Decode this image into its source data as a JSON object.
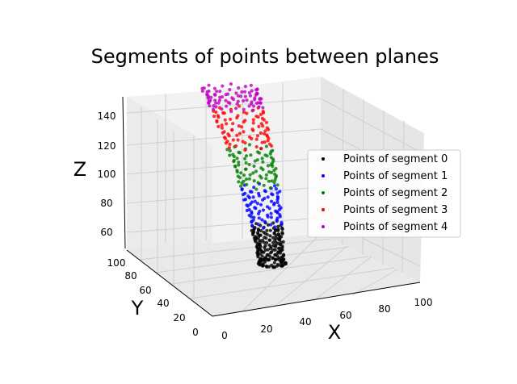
{
  "chart_data": {
    "type": "scatter3d",
    "title": "Segments of points between planes",
    "xlabel": "X",
    "ylabel": "Y",
    "zlabel": "Z",
    "xlim": [
      0,
      100
    ],
    "ylim": [
      0,
      100
    ],
    "zlim": [
      50,
      150
    ],
    "x_ticks": [
      "0",
      "20",
      "40",
      "60",
      "80",
      "100"
    ],
    "y_ticks": [
      "0",
      "20",
      "40",
      "60",
      "80",
      "100"
    ],
    "z_ticks": [
      "60",
      "80",
      "100",
      "120",
      "140"
    ],
    "grid": true,
    "legend_position": "right",
    "series": [
      {
        "name": "Points of segment 0",
        "color": "#000000",
        "z_range": [
          50,
          72
        ]
      },
      {
        "name": "Points of segment 1",
        "color": "#0000ff",
        "z_range": [
          72,
          94
        ]
      },
      {
        "name": "Points of segment 2",
        "color": "#008000",
        "z_range": [
          94,
          116
        ]
      },
      {
        "name": "Points of segment 3",
        "color": "#ff0000",
        "z_range": [
          116,
          138
        ]
      },
      {
        "name": "Points of segment 4",
        "color": "#bf00bf",
        "z_range": [
          138,
          150
        ]
      }
    ]
  }
}
